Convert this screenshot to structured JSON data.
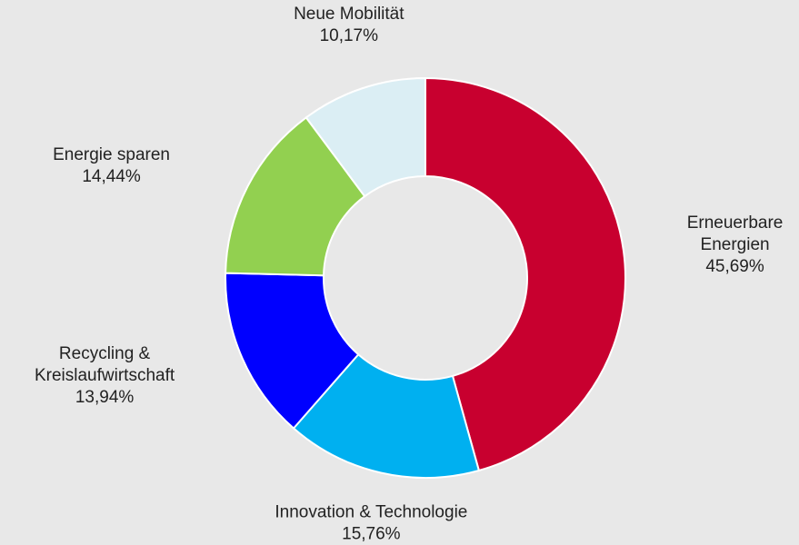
{
  "chart_data": {
    "type": "donut",
    "categories": [
      "Erneuerbare Energien",
      "Innovation & Technologie",
      "Recycling & Kreislaufwirtschaft",
      "Energie sparen",
      "Neue Mobilität"
    ],
    "values": [
      45.69,
      15.76,
      13.94,
      14.44,
      10.17
    ],
    "value_labels": [
      "45,69%",
      "15,76%",
      "13,94%",
      "14,44%",
      "10,17%"
    ],
    "colors": [
      "#c8002f",
      "#00b0f0",
      "#0000ff",
      "#92d050",
      "#dbeef4"
    ]
  }
}
